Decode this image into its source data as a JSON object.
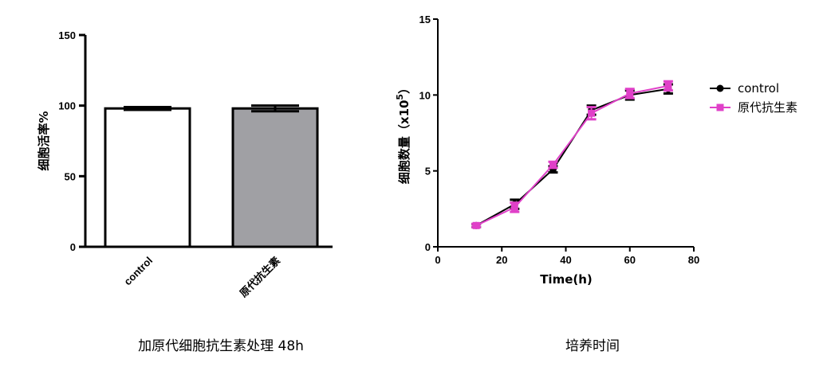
{
  "chart_data": [
    {
      "type": "bar",
      "categories": [
        "control",
        "原代抗生素"
      ],
      "values": [
        98,
        98
      ],
      "errors": [
        1,
        2
      ],
      "colors": [
        "#ffffff",
        "#a0a0a4"
      ],
      "ylabel": "细胞活率%",
      "yticks": [
        "0",
        "50",
        "100",
        "150"
      ],
      "ylim": [
        0,
        150
      ],
      "caption": "加原代细胞抗生素处理 48h"
    },
    {
      "type": "line",
      "xlabel": "Time(h)",
      "ylabel": "细胞数量（x10",
      "ylabel_sup": "5",
      "ylabel_close": "）",
      "xticks": [
        "0",
        "20",
        "40",
        "60",
        "80"
      ],
      "yticks": [
        "0",
        "5",
        "10",
        "15"
      ],
      "xlim": [
        0,
        80
      ],
      "ylim": [
        0,
        15
      ],
      "legend_position": "right",
      "caption": "培养时间",
      "series": [
        {
          "name": "control",
          "color": "#000000",
          "marker": "circle",
          "x": [
            12,
            24,
            36,
            48,
            60,
            72
          ],
          "y": [
            1.4,
            2.8,
            5.1,
            9.0,
            10.0,
            10.4
          ],
          "err": [
            0.1,
            0.3,
            0.2,
            0.3,
            0.3,
            0.3
          ]
        },
        {
          "name": "原代抗生素",
          "color": "#e040c8",
          "marker": "square",
          "x": [
            12,
            24,
            36,
            48,
            60,
            72
          ],
          "y": [
            1.4,
            2.6,
            5.4,
            8.8,
            10.1,
            10.6
          ],
          "err": [
            0.1,
            0.3,
            0.2,
            0.4,
            0.3,
            0.3
          ]
        }
      ]
    }
  ]
}
